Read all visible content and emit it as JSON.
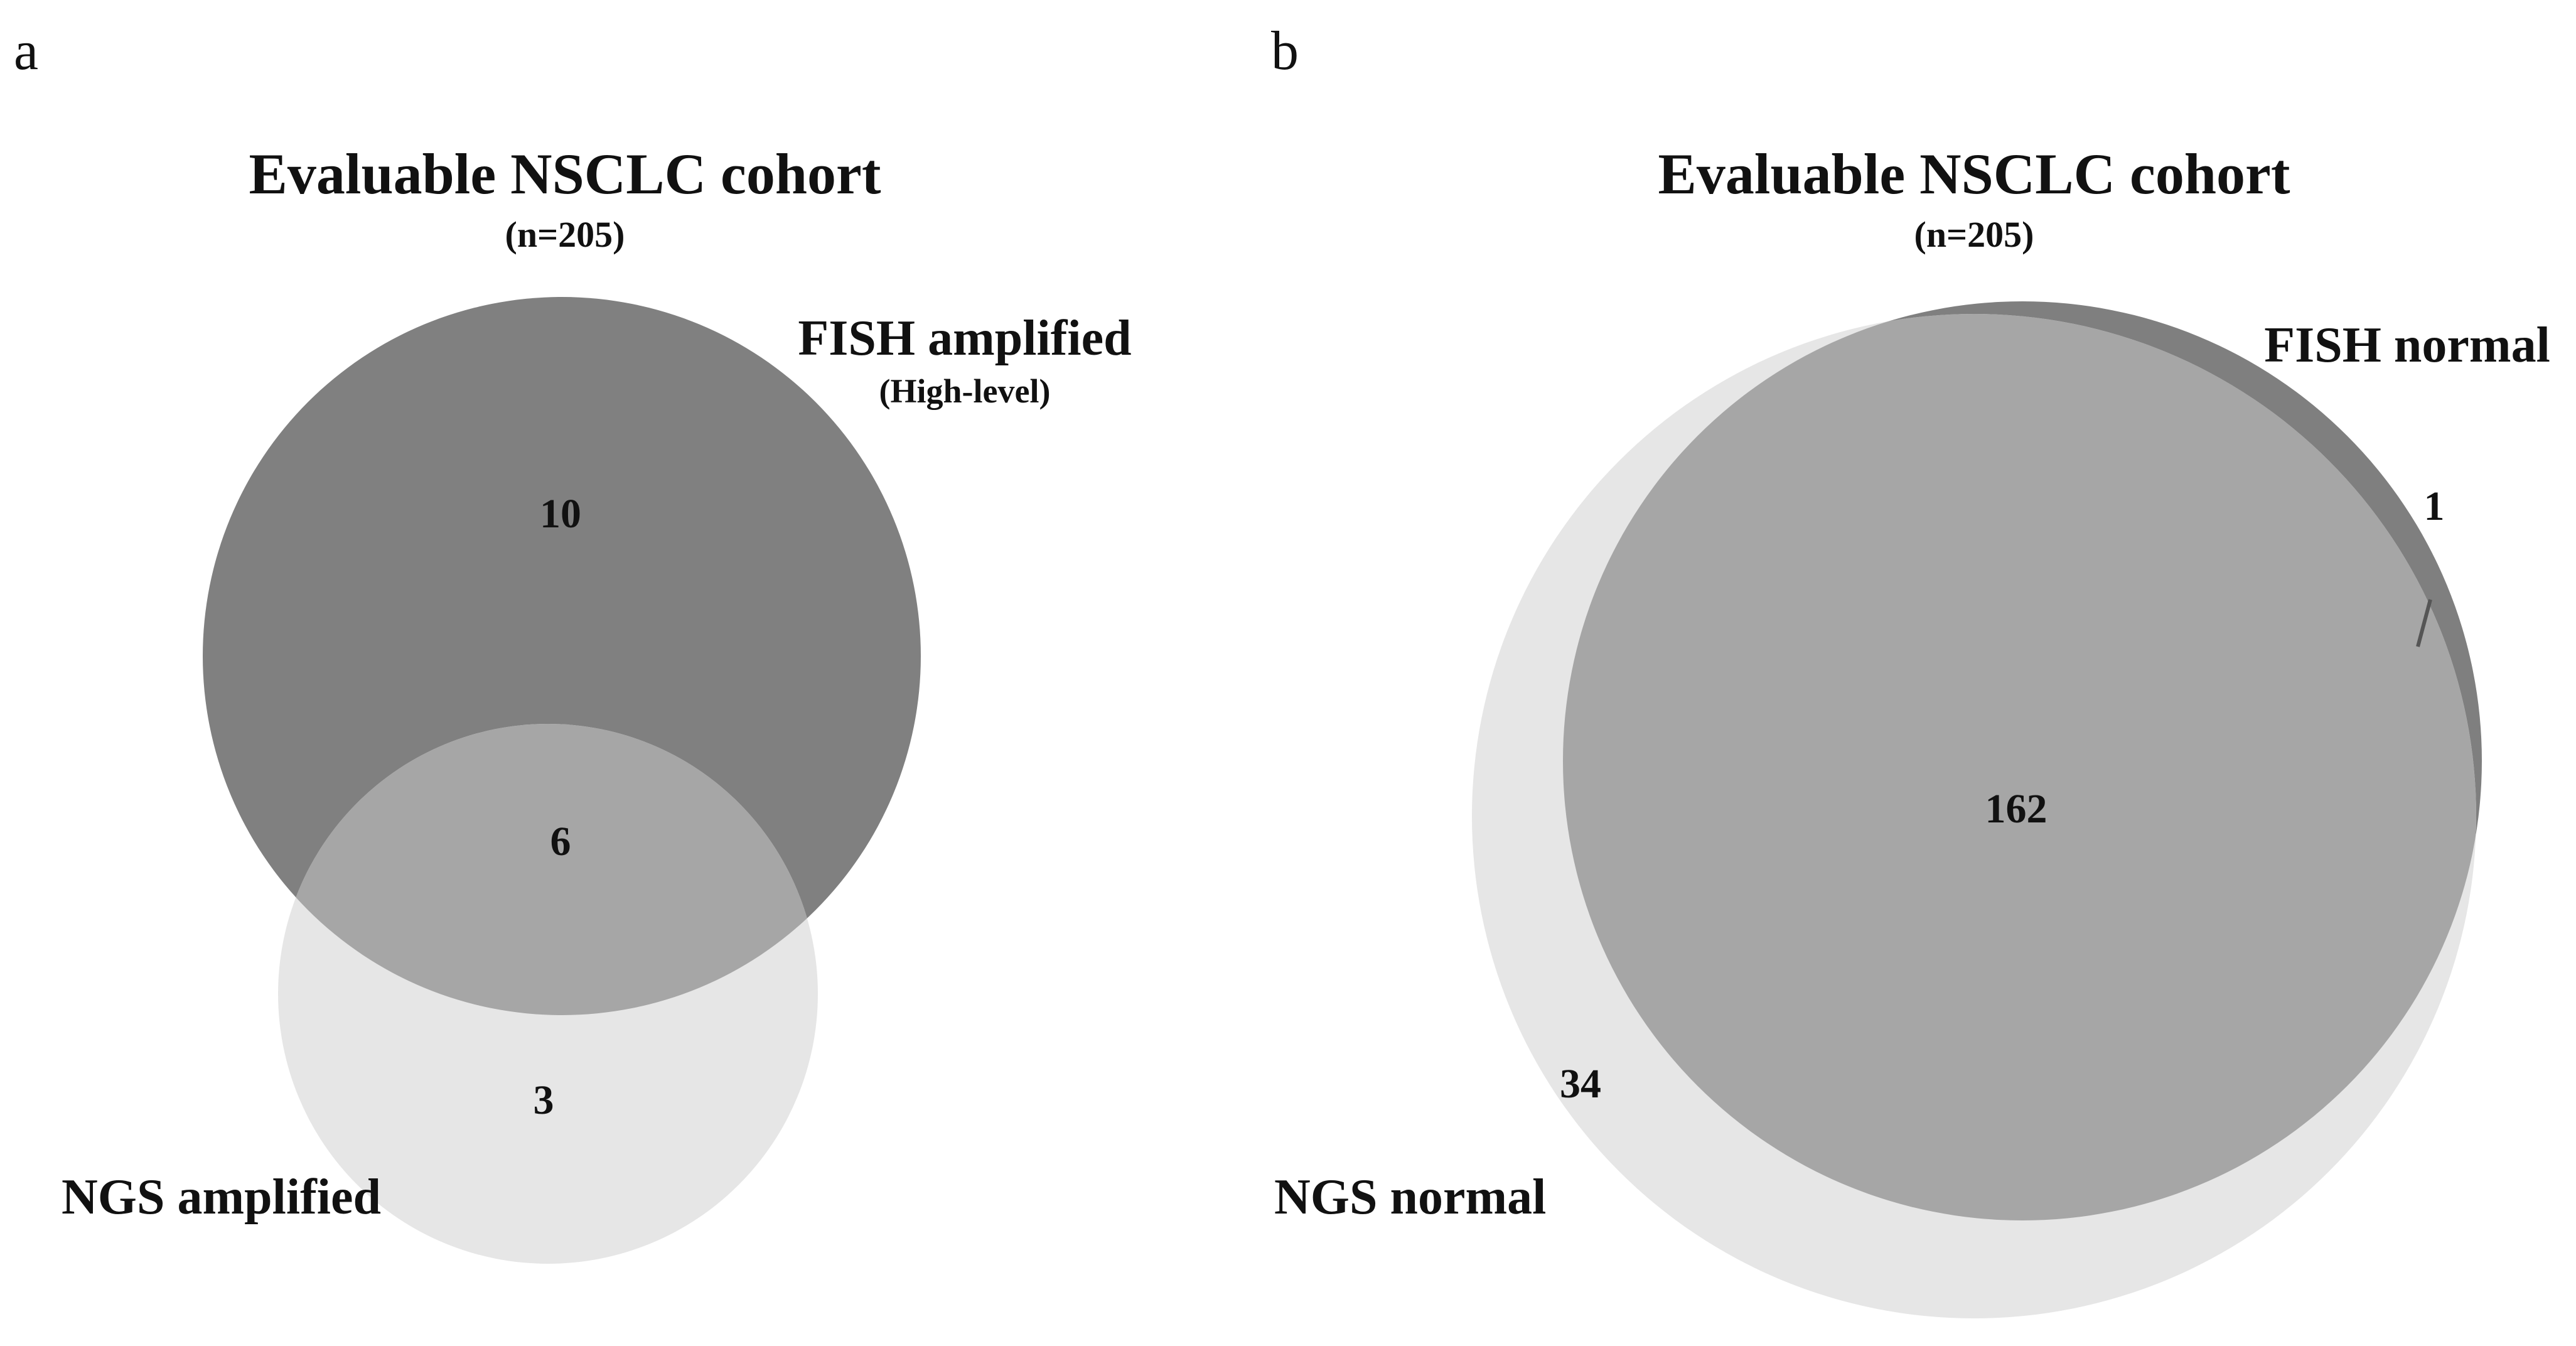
{
  "panel_a": {
    "letter": "a",
    "title": "Evaluable NSCLC cohort",
    "subtitle": "(n=205)",
    "sets": {
      "fish": {
        "label": "FISH amplified",
        "sublabel": "(High-level)",
        "color": "#808080"
      },
      "ngs": {
        "label": "NGS amplified",
        "color": "#e6e6e6"
      },
      "overlap_color": "#a6a6a6"
    },
    "counts": {
      "fish_only": "10",
      "both": "6",
      "ngs_only": "3"
    }
  },
  "panel_b": {
    "letter": "b",
    "title": "Evaluable NSCLC cohort",
    "subtitle": "(n=205)",
    "sets": {
      "fish": {
        "label": "FISH normal",
        "color": "#7f7f7f"
      },
      "ngs": {
        "label": "NGS normal",
        "color": "#e6e6e6"
      },
      "overlap_color": "#a6a6a6"
    },
    "counts": {
      "fish_only": "1",
      "both": "162",
      "ngs_only": "34"
    }
  }
}
